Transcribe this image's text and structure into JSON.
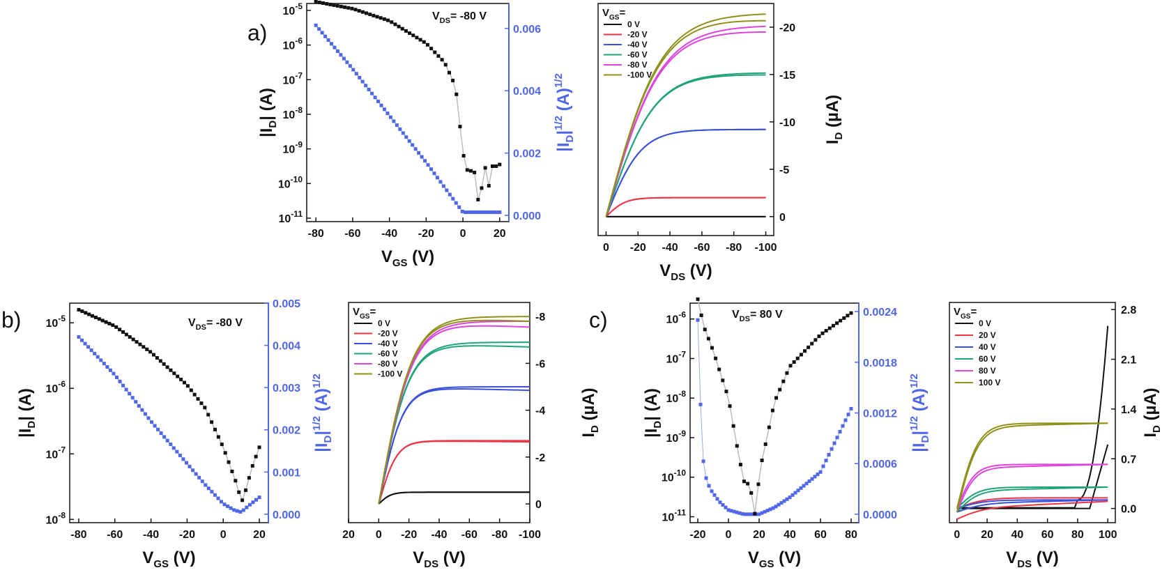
{
  "panel_labels": [
    "a)",
    "b)",
    "c)"
  ],
  "colors": {
    "black": "#111111",
    "blue": "#4f66e8",
    "line_grey": "#bbbbbb",
    "vgs_0": "#111111",
    "vgs_20": "#ee3344",
    "vgs_40": "#3a4fdc",
    "vgs_60": "#1fa37a",
    "vgs_80": "#dd44dd",
    "vgs_100": "#8f8f1a"
  },
  "chart_data": [
    {
      "id": "a-transfer",
      "type": "scatter",
      "annotation": "V_DS= -80 V",
      "xlabel": "V_GS (V)",
      "ylabel": "|I_D| (A)",
      "ylabel_right": "|I_D|^1/2 (A)^1/2",
      "x_ticks": [
        "-80",
        "-60",
        "-40",
        "-20",
        "0",
        "20"
      ],
      "xlim": [
        -85,
        25
      ],
      "ylim_log10": [
        -11.1,
        -4.8
      ],
      "yticks_log_exp": [
        "-5",
        "-6",
        "-7",
        "-8",
        "-9",
        "-10",
        "-11"
      ],
      "ylim_right": [
        -0.0002,
        0.0068
      ],
      "yticks_right": [
        "0.000",
        "0.002",
        "0.004",
        "0.006"
      ],
      "series": [
        {
          "axis": "left-log",
          "x": [
            -80,
            -60,
            -40,
            -20,
            -10,
            -4,
            0,
            2,
            4,
            6,
            8,
            10,
            12,
            14,
            16,
            18,
            20
          ],
          "y_log10": [
            -4.75,
            -4.95,
            -5.3,
            -5.95,
            -6.5,
            -7.2,
            -9.1,
            -9.6,
            -9.65,
            -9.55,
            -10.5,
            -10.2,
            -9.5,
            -10.1,
            -9.5,
            -9.5,
            -9.45
          ]
        },
        {
          "axis": "right-sqrt",
          "x": [
            -80,
            -60,
            -40,
            -20,
            -10,
            0,
            20
          ],
          "y": [
            0.0061,
            0.0047,
            0.0032,
            0.0017,
            0.0009,
            0.0001,
            0.0001
          ]
        }
      ]
    },
    {
      "id": "a-output",
      "type": "line",
      "legend_title": "V_GS=",
      "legend": [
        "0 V",
        "-20 V",
        "-40 V",
        "-60 V",
        "-80 V",
        "-100 V"
      ],
      "xlabel": "V_DS (V)",
      "ylabel": "I_D (µA)",
      "x_ticks": [
        "0",
        "-20",
        "-40",
        "-60",
        "-80",
        "-100"
      ],
      "xlim": [
        -5,
        105
      ],
      "ylim": [
        -2,
        22.5
      ],
      "y_ticks": [
        "0",
        "-5",
        "-10",
        "-15",
        "-20"
      ],
      "series_sat": [
        0,
        2,
        9.2,
        15.2,
        20.2,
        21.5
      ],
      "series_scale": [
        10,
        12,
        22,
        30,
        34,
        34
      ],
      "hysteresis_offset": [
        0,
        0,
        0,
        0.2,
        0.6,
        0.7
      ]
    },
    {
      "id": "b-transfer",
      "type": "scatter",
      "annotation": "V_DS= -80 V",
      "xlabel": "V_GS (V)",
      "ylabel": "|I_D| (A)",
      "ylabel_right": "|I_D|^1/2 (A)^1/2",
      "x_ticks": [
        "-80",
        "-60",
        "-40",
        "-20",
        "0",
        "20"
      ],
      "xlim": [
        -85,
        25
      ],
      "ylim_log10": [
        -8.05,
        -4.7
      ],
      "yticks_log_exp": [
        "-5",
        "-6",
        "-7",
        "-8"
      ],
      "ylim_right": [
        -0.0002,
        0.005
      ],
      "yticks_right": [
        "0.000",
        "0.001",
        "0.002",
        "0.003",
        "0.004",
        "0.005"
      ],
      "series": [
        {
          "axis": "left-log",
          "x": [
            -80,
            -60,
            -40,
            -20,
            -10,
            0,
            4,
            8,
            10,
            12,
            16,
            20
          ],
          "y_log10": [
            -4.8,
            -5.05,
            -5.45,
            -5.95,
            -6.3,
            -6.9,
            -7.2,
            -7.5,
            -7.75,
            -7.6,
            -7.2,
            -6.9
          ]
        },
        {
          "axis": "right-sqrt",
          "x": [
            -80,
            -60,
            -40,
            -20,
            -10,
            0,
            6,
            10,
            14,
            20
          ],
          "y": [
            0.0042,
            0.0033,
            0.0022,
            0.0012,
            0.0007,
            0.00025,
            0.0001,
            5e-05,
            0.0002,
            0.0004
          ]
        }
      ]
    },
    {
      "id": "b-output",
      "type": "line",
      "legend_title": "V_GS=",
      "legend": [
        "0 V",
        "-20 V",
        "-40 V",
        "-60 V",
        "-80 V",
        "-100 V"
      ],
      "xlabel": "V_DS (V)",
      "ylabel": "I_D (µA)",
      "x_ticks": [
        "20",
        "0",
        "-20",
        "-40",
        "-60",
        "-80",
        "-100"
      ],
      "xlim": [
        -20,
        100
      ],
      "ylim": [
        -0.8,
        8.6
      ],
      "y_ticks": [
        "0",
        "-2",
        "-4",
        "-6",
        "-8"
      ],
      "series_sat": [
        0.5,
        2.7,
        5.0,
        6.9,
        7.8,
        8.0
      ],
      "series_scale": [
        8,
        12,
        16,
        20,
        22,
        22
      ],
      "hysteresis_offset": [
        0,
        0.05,
        0.15,
        0.2,
        0.25,
        0.2
      ]
    },
    {
      "id": "c-transfer",
      "type": "scatter",
      "annotation": "V_DS= 80 V",
      "xlabel": "V_GS (V)",
      "ylabel": "|I_D| (A)",
      "ylabel_right": "|I_D|^1/2 (A)^1/2",
      "x_ticks": [
        "-20",
        "0",
        "20",
        "40",
        "60",
        "80"
      ],
      "xlim": [
        -25,
        85
      ],
      "ylim_log10": [
        -11.15,
        -5.6
      ],
      "yticks_log_exp": [
        "-6",
        "-7",
        "-8",
        "-9",
        "-10",
        "-11"
      ],
      "ylim_right": [
        -0.0001,
        0.0025
      ],
      "yticks_right": [
        "0.0000",
        "0.0006",
        "0.0012",
        "0.0018",
        "0.0024"
      ],
      "series": [
        {
          "axis": "left-log",
          "x": [
            -20,
            -16,
            -10,
            0,
            6,
            10,
            14,
            18,
            20,
            24,
            30,
            40,
            60,
            80
          ],
          "y_log10": [
            -5.5,
            -6.2,
            -6.8,
            -8.0,
            -9.3,
            -10.1,
            -10.2,
            -11.1,
            -9.9,
            -9.2,
            -8.1,
            -7.2,
            -6.4,
            -5.85
          ]
        },
        {
          "axis": "right-sqrt",
          "x": [
            -20,
            -18,
            -16,
            -12,
            -6,
            0,
            10,
            20,
            30,
            40,
            60,
            80
          ],
          "y": [
            0.0023,
            0.0012,
            0.0005,
            0.0003,
            0.00015,
            5e-05,
            0.0,
            0.0,
            8e-05,
            0.0002,
            0.0005,
            0.00125
          ]
        }
      ]
    },
    {
      "id": "c-output",
      "type": "line",
      "legend_title": "V_GS=",
      "legend": [
        "0 V",
        "20 V",
        "40 V",
        "60 V",
        "80 V",
        "100 V"
      ],
      "xlabel": "V_DS (V)",
      "ylabel": "I_D (µA)",
      "x_ticks": [
        "0",
        "20",
        "40",
        "60",
        "80",
        "100"
      ],
      "xlim": [
        -5,
        105
      ],
      "ylim": [
        -0.2,
        2.9
      ],
      "y_ticks": [
        "0.0",
        "0.7",
        "1.4",
        "2.1",
        "2.8"
      ],
      "series_sat": [
        0.0,
        0.15,
        0.12,
        0.3,
        0.62,
        1.2
      ]
    }
  ]
}
